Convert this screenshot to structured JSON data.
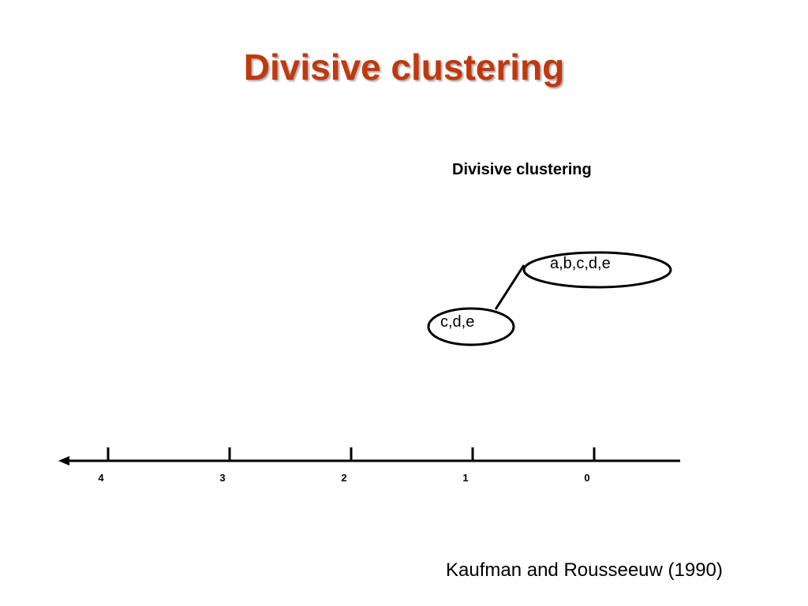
{
  "slide": {
    "title": "Divisive clustering",
    "title_color": "#c0390e"
  },
  "diagram": {
    "title": "Divisive clustering",
    "nodes": [
      {
        "label": "a,b,c,d,e",
        "step": 0
      },
      {
        "label": "c,d,e",
        "step": 1
      }
    ],
    "axis": {
      "direction": "leftward",
      "ticks": [
        "4",
        "3",
        "2",
        "1",
        "0"
      ]
    }
  },
  "citation": "Kaufman and Rousseeuw (1990)"
}
